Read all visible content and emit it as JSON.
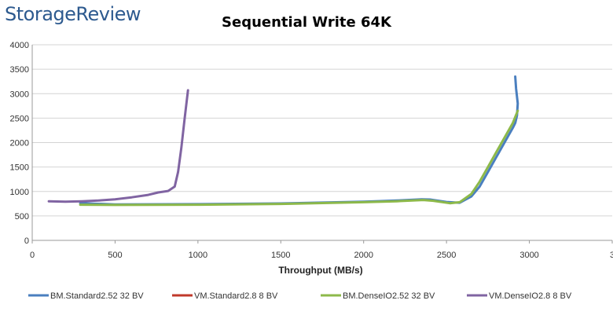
{
  "brand": {
    "logo_text": "StorageReview"
  },
  "chart_data": {
    "type": "line",
    "title": "Sequential Write 64K",
    "xlabel": "Throughput (MB/s)",
    "ylabel": "",
    "xlim": [
      0,
      3500
    ],
    "ylim": [
      0,
      4000
    ],
    "x_ticks": [
      "0",
      "500",
      "1000",
      "1500",
      "2000",
      "2500",
      "3000",
      "3"
    ],
    "y_ticks": [
      "0",
      "500",
      "1000",
      "1500",
      "2000",
      "2500",
      "3000",
      "3500",
      "4000"
    ],
    "grid": "horizontal",
    "legend_position": "bottom",
    "series": [
      {
        "name": "BM.Standard2.52 32 BV",
        "color": "#4a7fbf",
        "x": [
          290,
          500,
          1000,
          1500,
          2000,
          2200,
          2350,
          2400,
          2500,
          2580,
          2650,
          2700,
          2750,
          2800,
          2850,
          2900,
          2915,
          2925,
          2930,
          2920,
          2915
        ],
        "y": [
          760,
          735,
          740,
          755,
          790,
          815,
          840,
          835,
          785,
          770,
          900,
          1100,
          1400,
          1700,
          2000,
          2300,
          2400,
          2550,
          2800,
          3100,
          3350
        ]
      },
      {
        "name": "VM.Standard2.8 8 BV",
        "color": "#c0392b",
        "x": [],
        "y": []
      },
      {
        "name": "BM.DenseIO2.52 32 BV",
        "color": "#8db94a",
        "x": [
          290,
          500,
          1000,
          1500,
          2000,
          2200,
          2360,
          2420,
          2520,
          2580,
          2650,
          2700,
          2750,
          2800,
          2850,
          2900,
          2930
        ],
        "y": [
          730,
          725,
          730,
          745,
          780,
          800,
          825,
          810,
          760,
          780,
          950,
          1200,
          1500,
          1800,
          2100,
          2400,
          2650
        ]
      },
      {
        "name": "VM.DenseIO2.8 8 BV",
        "color": "#8064a2",
        "x": [
          100,
          200,
          300,
          400,
          500,
          600,
          700,
          760,
          820,
          860,
          880,
          900,
          920,
          940
        ],
        "y": [
          800,
          790,
          800,
          815,
          840,
          880,
          930,
          980,
          1010,
          1100,
          1400,
          1900,
          2500,
          3070
        ]
      }
    ]
  }
}
